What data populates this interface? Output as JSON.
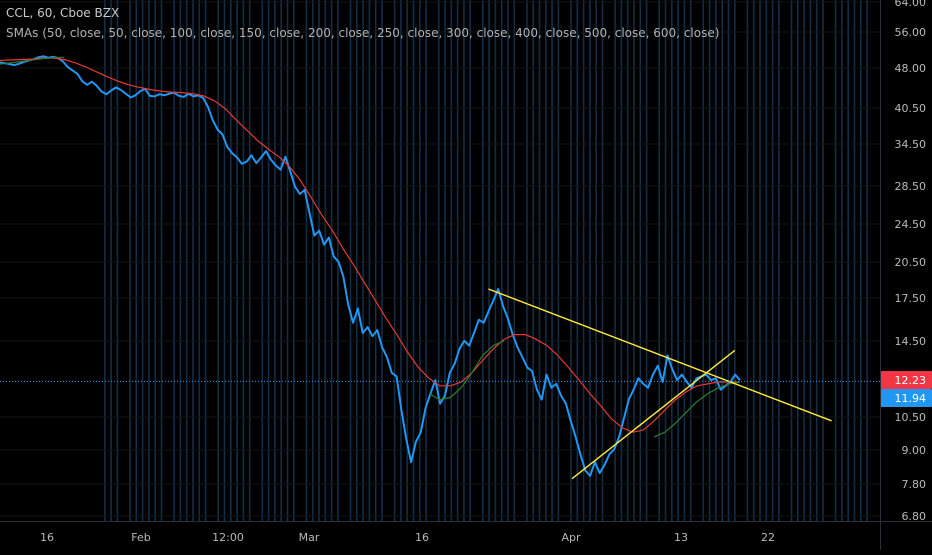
{
  "header": {
    "title": "CCL, 60, Cboe BZX",
    "indicator": "SMAs (50, close, 50, close, 100, close, 150, close, 200, close, 250, close, 300, close, 400, close, 500, close, 600, close)"
  },
  "colors": {
    "background": "#000000",
    "price_line": "#2196f3",
    "sma_red": "#e53935",
    "sma_green": "#2e7d32",
    "trendline": "#ffeb3b",
    "current_price_tag": "#f23645",
    "last_price_tag": "#2196f3",
    "session_stripe": "#16324f"
  },
  "chart_data": {
    "type": "line",
    "title": "",
    "xlabel": "",
    "ylabel": "",
    "y_scale": "log",
    "ylim": [
      6.4,
      64.0
    ],
    "x_ticks": [
      "16",
      "Feb",
      "12:00",
      "Mar",
      "16",
      "Apr",
      "13",
      "22"
    ],
    "y_ticks": [
      "64.00",
      "56.00",
      "48.00",
      "40.50",
      "34.50",
      "28.50",
      "24.50",
      "20.50",
      "17.50",
      "14.50",
      "12.23",
      "10.50",
      "9.00",
      "7.80",
      "6.80"
    ],
    "series": [
      {
        "key": "price",
        "values": [
          49.2,
          49.0,
          48.8,
          48.6,
          48.9,
          49.3,
          49.6,
          49.9,
          50.3,
          50.5,
          50.2,
          50.4,
          50.1,
          49.4,
          48.2,
          47.5,
          46.8,
          45.3,
          44.6,
          45.2,
          44.4,
          43.3,
          42.8,
          43.5,
          44.1,
          43.6,
          42.9,
          42.2,
          42.6,
          43.4,
          43.8,
          42.5,
          42.4,
          42.8,
          42.6,
          42.9,
          43.1,
          42.5,
          42.3,
          42.9,
          42.4,
          42.6,
          42.1,
          40.5,
          38.2,
          36.7,
          35.9,
          34.0,
          33.1,
          32.5,
          31.6,
          31.9,
          32.8,
          31.7,
          32.5,
          33.4,
          32.2,
          31.4,
          30.8,
          32.6,
          30.6,
          28.6,
          27.7,
          28.2,
          25.5,
          23.1,
          23.6,
          22.2,
          22.9,
          21.1,
          20.6,
          19.3,
          17.1,
          15.8,
          16.8,
          15.1,
          15.5,
          14.9,
          15.3,
          14.2,
          13.6,
          12.7,
          12.5,
          10.8,
          9.5,
          8.6,
          9.4,
          9.8,
          10.9,
          11.6,
          12.3,
          11.1,
          11.5,
          12.7,
          13.2,
          14.1,
          14.6,
          14.3,
          15.1,
          16.0,
          15.8,
          16.6,
          17.4,
          18.3,
          17.0,
          16.1,
          15.0,
          14.2,
          13.6,
          13.0,
          12.8,
          11.8,
          11.3,
          12.6,
          11.9,
          12.1,
          11.5,
          11.1,
          10.3,
          9.6,
          8.9,
          8.3,
          8.1,
          8.6,
          8.2,
          8.5,
          8.9,
          9.1,
          9.6,
          10.4,
          11.3,
          11.8,
          12.4,
          12.1,
          11.9,
          12.6,
          13.1,
          12.2,
          13.7,
          12.9,
          12.3,
          12.6,
          12.2,
          11.9,
          12.4,
          12.5,
          12.6,
          12.3,
          12.4,
          11.8,
          12.0,
          12.2,
          12.6,
          12.3
        ]
      },
      {
        "key": "sma_red",
        "values": [
          49.6,
          49.7,
          49.8,
          49.9,
          50.1,
          50.1,
          49.8,
          49.1,
          48.2,
          47.2,
          46.2,
          45.3,
          44.6,
          44.1,
          43.7,
          43.4,
          43.2,
          43.1,
          42.9,
          42.5,
          41.6,
          40.2,
          38.3,
          36.6,
          35.0,
          33.7,
          32.6,
          31.2,
          29.4,
          27.3,
          25.3,
          23.6,
          21.8,
          20.3,
          18.8,
          17.4,
          16.1,
          15.0,
          13.9,
          13.0,
          12.4,
          12.0,
          12.0,
          12.2,
          12.7,
          13.4,
          14.1,
          14.7,
          15.0,
          15.0,
          14.7,
          14.3,
          13.7,
          13.0,
          12.3,
          11.6,
          11.0,
          10.4,
          10.0,
          9.8,
          9.9,
          10.3,
          10.8,
          11.3,
          11.7,
          12.0,
          12.1,
          12.2,
          12.2,
          12.2
        ]
      },
      {
        "key": "sma_green",
        "values": [
          48.8,
          49.1,
          49.4,
          49.7,
          50.0,
          50.2,
          50.3,
          null,
          null,
          null,
          null,
          null,
          null,
          null,
          null,
          null,
          null,
          null,
          null,
          null,
          null,
          null,
          null,
          null,
          null,
          null,
          null,
          null,
          null,
          null,
          null,
          null,
          null,
          null,
          null,
          null,
          null,
          null,
          null,
          null,
          11.6,
          11.3,
          11.4,
          11.9,
          12.7,
          13.7,
          14.3,
          14.6,
          null,
          null,
          null,
          null,
          null,
          null,
          null,
          null,
          null,
          null,
          null,
          null,
          null,
          9.6,
          9.8,
          10.2,
          10.7,
          11.2,
          11.6,
          11.9,
          12.1,
          12.2
        ]
      }
    ],
    "trendlines": [
      {
        "from": [
          0.555,
          18.3
        ],
        "to": [
          0.945,
          10.3
        ]
      },
      {
        "from": [
          0.65,
          8.0
        ],
        "to": [
          0.835,
          14.0
        ]
      }
    ],
    "price_markers": [
      {
        "label": "12.23",
        "value": 12.23,
        "color_key": "current_price_tag"
      },
      {
        "label": "11.94",
        "value": 11.94,
        "color_key": "last_price_tag"
      }
    ]
  }
}
